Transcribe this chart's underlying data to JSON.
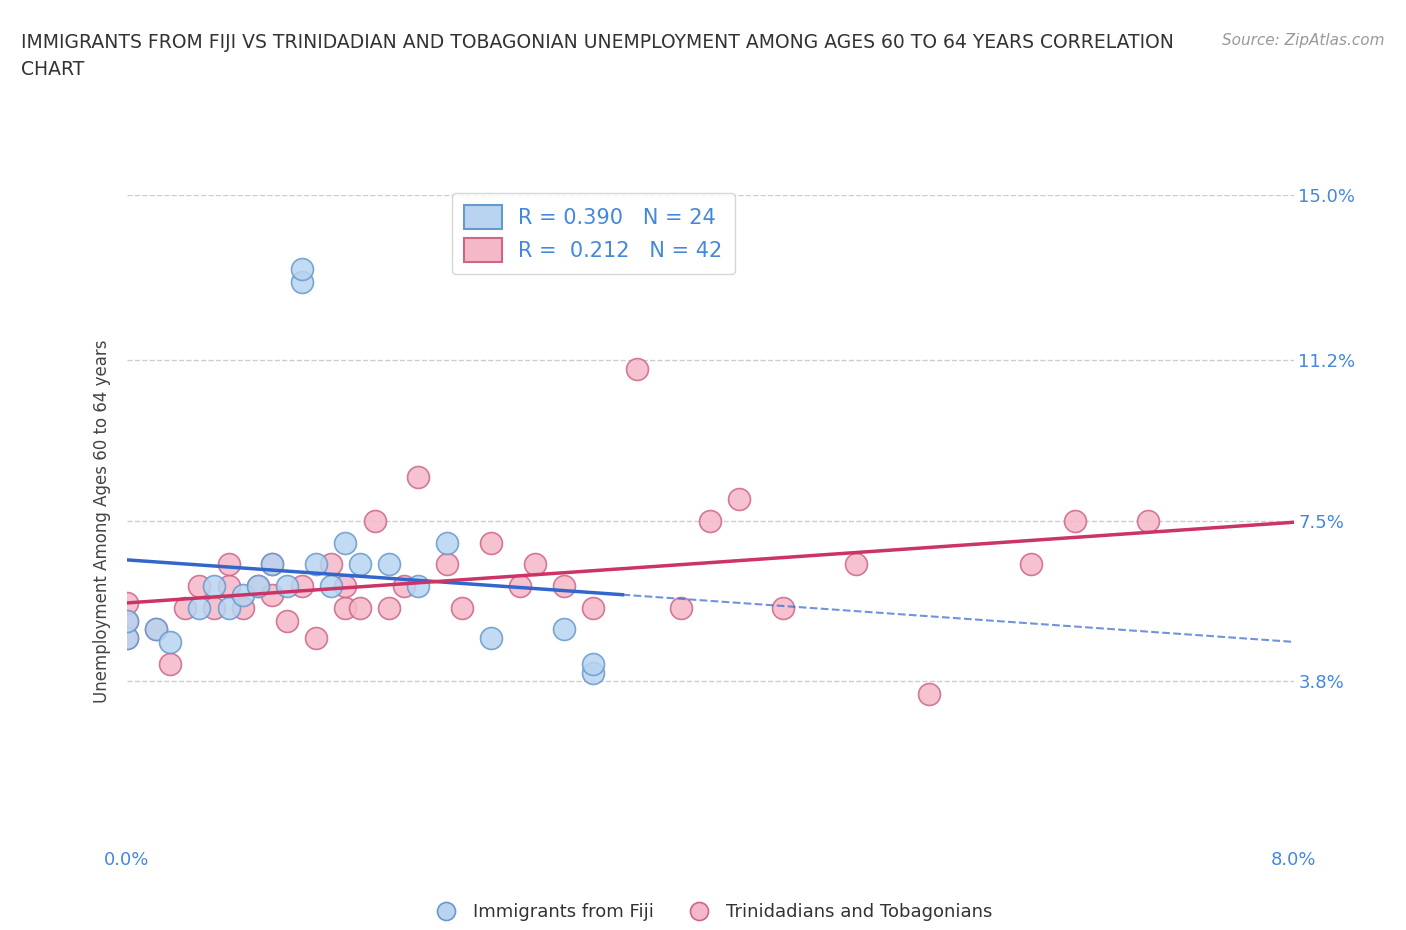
{
  "title_line1": "IMMIGRANTS FROM FIJI VS TRINIDADIAN AND TOBAGONIAN UNEMPLOYMENT AMONG AGES 60 TO 64 YEARS CORRELATION",
  "title_line2": "CHART",
  "source": "Source: ZipAtlas.com",
  "ylabel": "Unemployment Among Ages 60 to 64 years",
  "xlim": [
    0.0,
    0.08
  ],
  "ylim": [
    0.0,
    0.15
  ],
  "xticks": [
    0.0,
    0.02,
    0.04,
    0.06,
    0.08
  ],
  "xtick_labels": [
    "0.0%",
    "",
    "",
    "",
    "8.0%"
  ],
  "ytick_labels": [
    "3.8%",
    "7.5%",
    "11.2%",
    "15.0%"
  ],
  "yticks": [
    0.038,
    0.075,
    0.112,
    0.15
  ],
  "fiji_color": "#b8d4f0",
  "fiji_edge_color": "#6699cc",
  "tt_color": "#f5b8c8",
  "tt_edge_color": "#cc6688",
  "fiji_line_color": "#3366cc",
  "tt_line_color": "#cc3366",
  "fiji_R": 0.39,
  "fiji_N": 24,
  "tt_R": 0.212,
  "tt_N": 42,
  "fiji_scatter_x": [
    0.0,
    0.0,
    0.002,
    0.003,
    0.005,
    0.006,
    0.007,
    0.008,
    0.009,
    0.01,
    0.011,
    0.012,
    0.012,
    0.013,
    0.014,
    0.015,
    0.016,
    0.018,
    0.02,
    0.022,
    0.025,
    0.03,
    0.032,
    0.032
  ],
  "fiji_scatter_y": [
    0.048,
    0.052,
    0.05,
    0.047,
    0.055,
    0.06,
    0.055,
    0.058,
    0.06,
    0.065,
    0.06,
    0.13,
    0.133,
    0.065,
    0.06,
    0.07,
    0.065,
    0.065,
    0.06,
    0.07,
    0.048,
    0.05,
    0.04,
    0.042
  ],
  "tt_scatter_x": [
    0.0,
    0.0,
    0.0,
    0.002,
    0.003,
    0.004,
    0.005,
    0.006,
    0.007,
    0.007,
    0.008,
    0.009,
    0.01,
    0.01,
    0.011,
    0.012,
    0.013,
    0.014,
    0.015,
    0.015,
    0.016,
    0.017,
    0.018,
    0.019,
    0.02,
    0.022,
    0.023,
    0.025,
    0.027,
    0.028,
    0.03,
    0.032,
    0.035,
    0.038,
    0.04,
    0.042,
    0.045,
    0.05,
    0.055,
    0.062,
    0.065,
    0.07
  ],
  "tt_scatter_y": [
    0.048,
    0.052,
    0.056,
    0.05,
    0.042,
    0.055,
    0.06,
    0.055,
    0.06,
    0.065,
    0.055,
    0.06,
    0.058,
    0.065,
    0.052,
    0.06,
    0.048,
    0.065,
    0.055,
    0.06,
    0.055,
    0.075,
    0.055,
    0.06,
    0.085,
    0.065,
    0.055,
    0.07,
    0.06,
    0.065,
    0.06,
    0.055,
    0.11,
    0.055,
    0.075,
    0.08,
    0.055,
    0.065,
    0.035,
    0.065,
    0.075,
    0.075
  ],
  "background_color": "#ffffff",
  "grid_color": "#cccccc"
}
